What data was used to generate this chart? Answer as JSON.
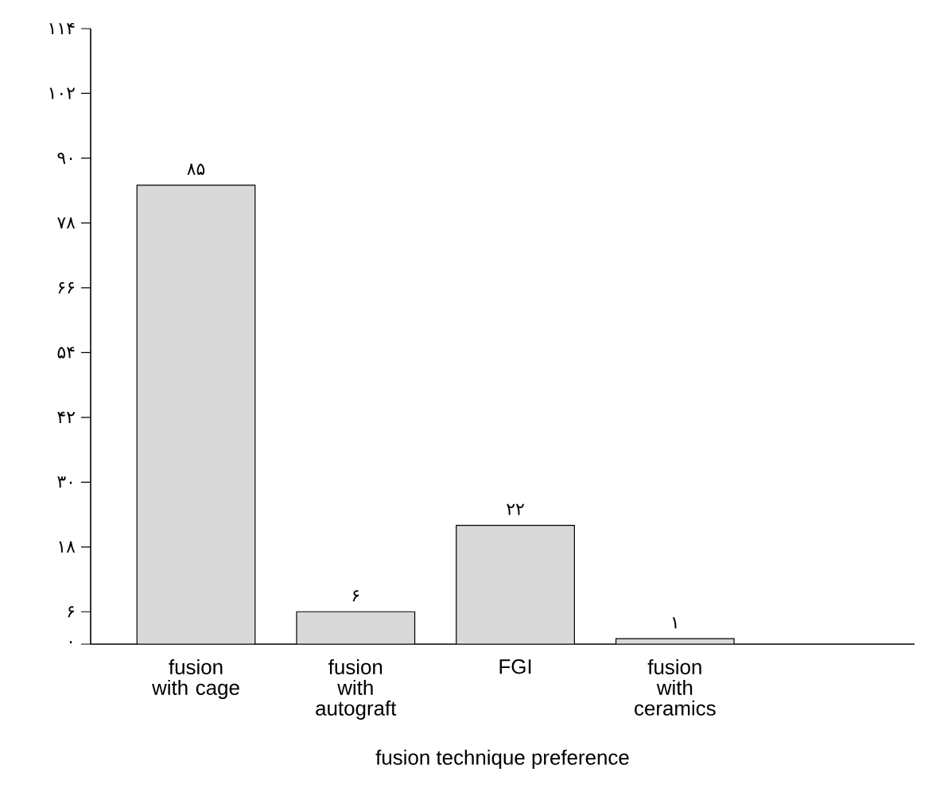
{
  "chart_data": {
    "type": "bar",
    "xlabel": "fusion technique preference",
    "categories": [
      "fusion with cage",
      "fusion with autograft",
      "FGI",
      "fusion with ceramics"
    ],
    "values": [
      85,
      6,
      22,
      1
    ],
    "value_labels": [
      "۸۵",
      "۶",
      "۲۲",
      "۱"
    ],
    "color": "#d9d9d9",
    "ylim": [
      0,
      114
    ],
    "yticks": [
      {
        "value": 0,
        "label": "۰"
      },
      {
        "value": 6,
        "label": "۶"
      },
      {
        "value": 18,
        "label": "۱۸"
      },
      {
        "value": 30,
        "label": "۳۰"
      },
      {
        "value": 42,
        "label": "۴۲"
      },
      {
        "value": 54,
        "label": "۵۴"
      },
      {
        "value": 66,
        "label": "۶۶"
      },
      {
        "value": 78,
        "label": "۷۸"
      },
      {
        "value": 90,
        "label": "۹۰"
      },
      {
        "value": 102,
        "label": "۱۰۲"
      },
      {
        "value": 114,
        "label": "۱۱۴"
      }
    ]
  }
}
